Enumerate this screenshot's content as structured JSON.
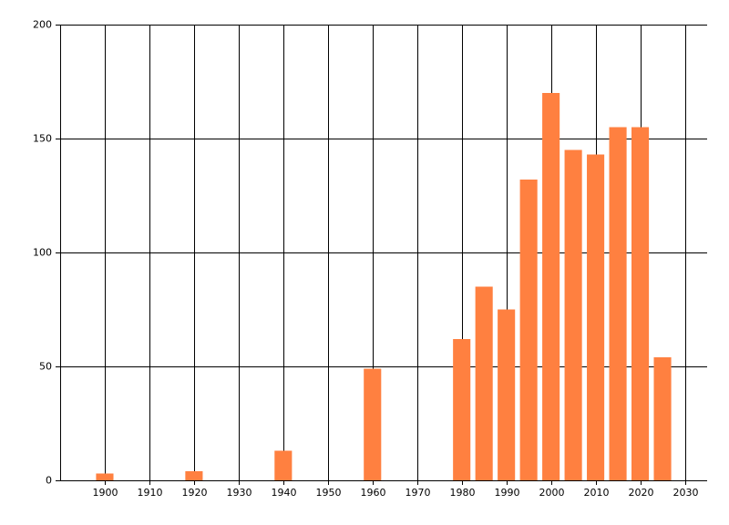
{
  "chart_data": {
    "type": "bar",
    "x": [
      1900,
      1920,
      1940,
      1960,
      1980,
      1985,
      1990,
      1995,
      2000,
      2005,
      2010,
      2015,
      2020,
      2025
    ],
    "values": [
      3,
      4,
      13,
      49,
      62,
      85,
      75,
      132,
      170,
      145,
      143,
      155,
      155,
      54
    ],
    "color": "#ff8040",
    "xlim": [
      1890,
      2035
    ],
    "xticks": [
      1900,
      1910,
      1920,
      1930,
      1940,
      1950,
      1960,
      1970,
      1980,
      1990,
      2000,
      2010,
      2020,
      2030
    ],
    "ylim": [
      0,
      200
    ],
    "yticks": [
      0,
      50,
      100,
      150,
      200
    ],
    "grid": true
  }
}
